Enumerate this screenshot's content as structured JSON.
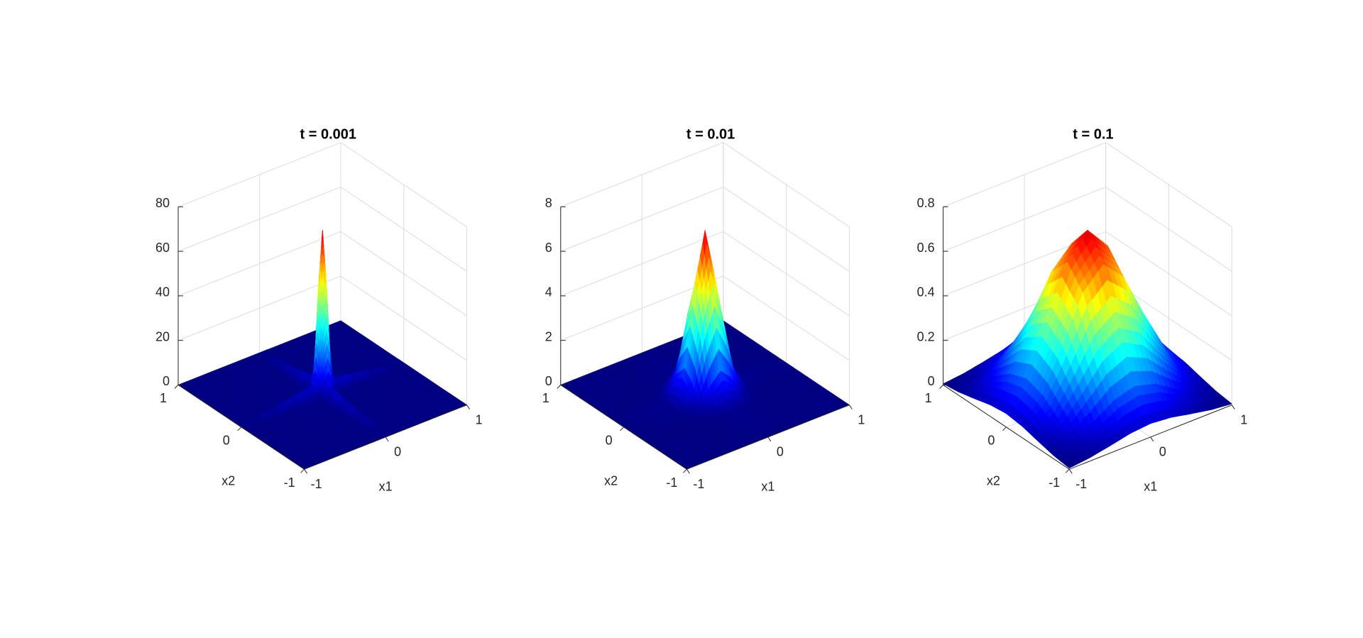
{
  "chart_data": [
    {
      "type": "surface",
      "title": "t = 0.001",
      "xlabel": "x1",
      "ylabel": "x2",
      "colormap": "jet",
      "grid": true,
      "x": [
        -1,
        -0.1,
        -0.06,
        -0.03,
        0,
        0.03,
        0.06,
        0.1,
        1
      ],
      "y": [
        -1,
        -0.1,
        -0.06,
        -0.03,
        0,
        0.03,
        0.06,
        0.1,
        1
      ],
      "z": [
        [
          0,
          0,
          0,
          0,
          0,
          0,
          0,
          0,
          0
        ],
        [
          0,
          0.5,
          2.47,
          4.85,
          6.07,
          4.85,
          2.47,
          0.5,
          0
        ],
        [
          0,
          2.47,
          12.26,
          24.06,
          30.12,
          24.06,
          12.26,
          2.47,
          0
        ],
        [
          0,
          4.85,
          24.06,
          47.24,
          59.13,
          47.24,
          24.06,
          4.85,
          0
        ],
        [
          0,
          6.07,
          30.12,
          59.13,
          74,
          59.13,
          30.12,
          6.07,
          0
        ],
        [
          0,
          4.85,
          24.06,
          47.24,
          59.13,
          47.24,
          24.06,
          4.85,
          0
        ],
        [
          0,
          2.47,
          12.26,
          24.06,
          30.12,
          24.06,
          12.26,
          2.47,
          0
        ],
        [
          0,
          0.5,
          2.47,
          4.85,
          6.07,
          4.85,
          2.47,
          0.5,
          0
        ],
        [
          0,
          0,
          0,
          0,
          0,
          0,
          0,
          0,
          0
        ]
      ],
      "xlim": [
        -1,
        1
      ],
      "ylim": [
        -1,
        1
      ],
      "zlim": [
        0,
        80
      ],
      "xticks": [
        -1,
        0,
        1
      ],
      "yticks": [
        -1,
        0,
        1
      ],
      "zticks": [
        0,
        20,
        40,
        60,
        80
      ]
    },
    {
      "type": "surface",
      "title": "t = 0.01",
      "xlabel": "x1",
      "ylabel": "x2",
      "colormap": "jet",
      "grid": true,
      "x": [
        -1,
        -0.4,
        -0.25,
        -0.12,
        0,
        0.12,
        0.25,
        0.4,
        1
      ],
      "y": [
        -1,
        -0.4,
        -0.25,
        -0.12,
        0,
        0.12,
        0.25,
        0.4,
        1
      ],
      "z": [
        [
          0,
          0,
          0,
          0,
          0,
          0,
          0,
          0,
          0
        ],
        [
          0,
          0.0025,
          0.028,
          0.095,
          0.135,
          0.095,
          0.028,
          0.0025,
          0
        ],
        [
          0,
          0.028,
          0.326,
          1.085,
          1.554,
          1.085,
          0.326,
          0.028,
          0
        ],
        [
          0,
          0.095,
          1.085,
          3.605,
          5.165,
          3.605,
          1.085,
          0.095,
          0
        ],
        [
          0,
          0.135,
          1.554,
          5.165,
          7.4,
          5.165,
          1.554,
          0.135,
          0
        ],
        [
          0,
          0.095,
          1.085,
          3.605,
          5.165,
          3.605,
          1.085,
          0.095,
          0
        ],
        [
          0,
          0.028,
          0.326,
          1.085,
          1.554,
          1.085,
          0.326,
          0.028,
          0
        ],
        [
          0,
          0.0025,
          0.028,
          0.095,
          0.135,
          0.095,
          0.028,
          0.0025,
          0
        ],
        [
          0,
          0,
          0,
          0,
          0,
          0,
          0,
          0,
          0
        ]
      ],
      "xlim": [
        -1,
        1
      ],
      "ylim": [
        -1,
        1
      ],
      "zlim": [
        0,
        8
      ],
      "xticks": [
        -1,
        0,
        1
      ],
      "yticks": [
        -1,
        0,
        1
      ],
      "zticks": [
        0,
        2,
        4,
        6,
        8
      ]
    },
    {
      "type": "surface",
      "title": "t = 0.1",
      "xlabel": "x1",
      "ylabel": "x2",
      "colormap": "jet",
      "grid": true,
      "x": [
        -1,
        -0.75,
        -0.5,
        -0.25,
        0,
        0.25,
        0.5,
        0.75,
        1
      ],
      "y": [
        -1,
        -0.75,
        -0.5,
        -0.25,
        0,
        0.25,
        0.5,
        0.75,
        1
      ],
      "z": [
        [
          0.005,
          0.0149,
          0.0325,
          0.0519,
          0.0607,
          0.0519,
          0.0325,
          0.0149,
          0.005
        ],
        [
          0.0149,
          0.0444,
          0.097,
          0.155,
          0.181,
          0.155,
          0.097,
          0.0444,
          0.0149
        ],
        [
          0.0325,
          0.097,
          0.212,
          0.338,
          0.396,
          0.338,
          0.212,
          0.097,
          0.0325
        ],
        [
          0.0519,
          0.155,
          0.338,
          0.541,
          0.633,
          0.541,
          0.338,
          0.155,
          0.0519
        ],
        [
          0.0607,
          0.181,
          0.396,
          0.633,
          0.74,
          0.633,
          0.396,
          0.181,
          0.0607
        ],
        [
          0.0519,
          0.155,
          0.338,
          0.541,
          0.633,
          0.541,
          0.338,
          0.155,
          0.0519
        ],
        [
          0.0325,
          0.097,
          0.212,
          0.338,
          0.396,
          0.338,
          0.212,
          0.097,
          0.0325
        ],
        [
          0.0149,
          0.0444,
          0.097,
          0.155,
          0.181,
          0.155,
          0.097,
          0.0444,
          0.0149
        ],
        [
          0.005,
          0.0149,
          0.0325,
          0.0519,
          0.0607,
          0.0519,
          0.0325,
          0.0149,
          0.005
        ]
      ],
      "xlim": [
        -1,
        1
      ],
      "ylim": [
        -1,
        1
      ],
      "zlim": [
        0,
        0.8
      ],
      "xticks": [
        -1,
        0,
        1
      ],
      "yticks": [
        -1,
        0,
        1
      ],
      "zticks": [
        0,
        0.2,
        0.4,
        0.6,
        0.8
      ]
    }
  ]
}
